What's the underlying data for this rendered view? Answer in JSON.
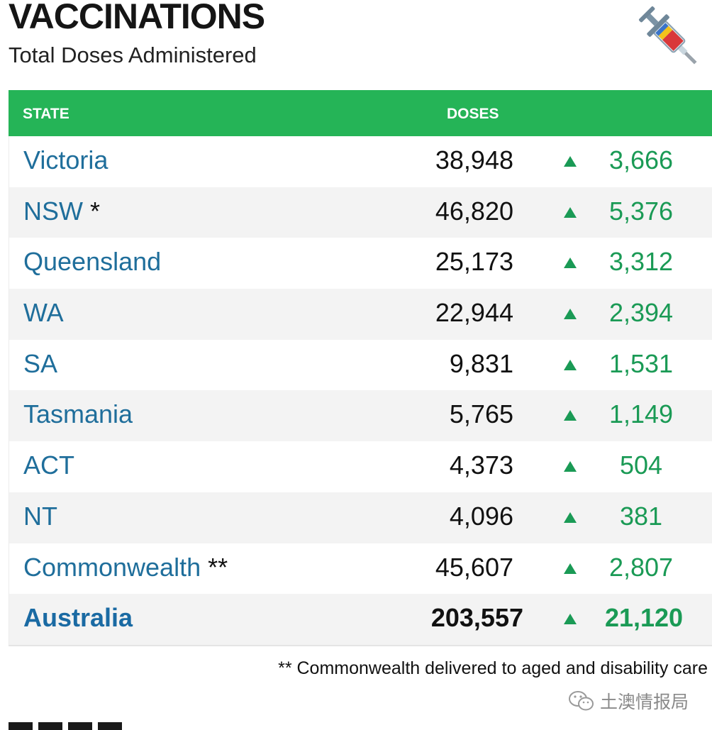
{
  "header": {
    "title": "VACCINATIONS",
    "subtitle": "Total Doses Administered",
    "icon": "syringe-icon"
  },
  "table": {
    "columns": {
      "state": "STATE",
      "doses": "DOSES"
    },
    "rows": [
      {
        "state": "Victoria",
        "mark": "",
        "doses": "38,948",
        "change": "3,666"
      },
      {
        "state": "NSW",
        "mark": "*",
        "doses": "46,820",
        "change": "5,376"
      },
      {
        "state": "Queensland",
        "mark": "",
        "doses": "25,173",
        "change": "3,312"
      },
      {
        "state": "WA",
        "mark": "",
        "doses": "22,944",
        "change": "2,394"
      },
      {
        "state": "SA",
        "mark": "",
        "doses": "9,831",
        "change": "1,531"
      },
      {
        "state": "Tasmania",
        "mark": "",
        "doses": "5,765",
        "change": "1,149"
      },
      {
        "state": "ACT",
        "mark": "",
        "doses": "4,373",
        "change": "504"
      },
      {
        "state": "NT",
        "mark": "",
        "doses": "4,096",
        "change": "381"
      },
      {
        "state": "Commonwealth",
        "mark": "**",
        "doses": "45,607",
        "change": "2,807"
      }
    ],
    "total": {
      "state": "Australia",
      "doses": "203,557",
      "change": "21,120"
    }
  },
  "footnote": "** Commonwealth delivered to aged and disability care",
  "watermark": "土澳情报局",
  "colors": {
    "header_bg": "#25b457",
    "state_text": "#1f6e9b",
    "change_text": "#1a9a55"
  }
}
